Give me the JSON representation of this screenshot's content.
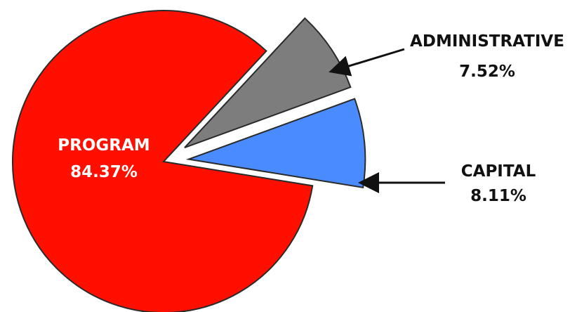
{
  "chart_data": {
    "type": "pie",
    "slices": [
      {
        "label": "PROGRAM",
        "value": 84.37,
        "value_label": "84.37%",
        "color": "#ff0f00",
        "exploded": false
      },
      {
        "label": "ADMINISTRATIVE",
        "value": 7.52,
        "value_label": "7.52%",
        "color": "#7d7d7d",
        "exploded": true
      },
      {
        "label": "CAPITAL",
        "value": 8.11,
        "value_label": "8.11%",
        "color": "#4a8cff",
        "exploded": true
      }
    ],
    "title": "",
    "legend": "none"
  }
}
